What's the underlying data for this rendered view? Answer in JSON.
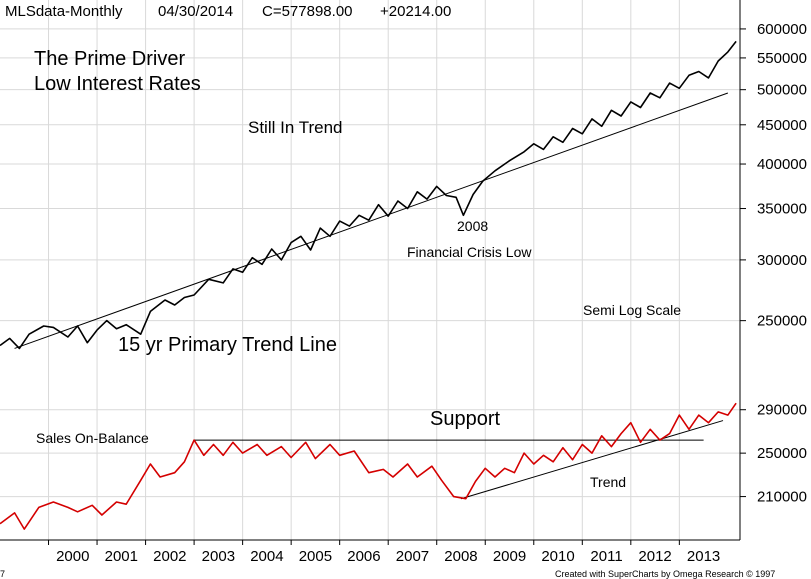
{
  "chart_data": {
    "type": "line",
    "header": {
      "symbol": "MLSdata-Monthly",
      "date": "04/30/2014",
      "close": "C=577898.00",
      "change": "+20214.00"
    },
    "annotations": {
      "title_line1": "The Prime Driver",
      "title_line2": "Low Interest Rates",
      "still_in_trend": "Still In Trend",
      "year_2008": "2008",
      "crisis_low": "Financial Crisis Low",
      "semi_log": "Semi Log Scale",
      "trend_line": "15 yr Primary Trend Line",
      "support": "Support",
      "sales_on_balance": "Sales On-Balance",
      "trend": "Trend"
    },
    "credit": "Created with SuperCharts by Omega Research © 1997",
    "corner_mark": "7",
    "grid": true,
    "upper_panel": {
      "scale": "semi-log",
      "ylim": [
        200000,
        620000
      ],
      "yticks": [
        {
          "value": 600000,
          "label": "600000"
        },
        {
          "value": 550000,
          "label": "550000"
        },
        {
          "value": 500000,
          "label": "500000"
        },
        {
          "value": 450000,
          "label": "450000"
        },
        {
          "value": 400000,
          "label": "400000"
        },
        {
          "value": 350000,
          "label": "350000"
        },
        {
          "value": 300000,
          "label": "300000"
        },
        {
          "value": 250000,
          "label": "250000"
        }
      ],
      "series": [
        {
          "values": [
            [
              1999.0,
              232000
            ],
            [
              1999.2,
              237000
            ],
            [
              1999.4,
              230000
            ],
            [
              1999.6,
              240000
            ],
            [
              1999.9,
              246000
            ],
            [
              2000.1,
              245000
            ],
            [
              2000.4,
              238000
            ],
            [
              2000.6,
              246000
            ],
            [
              2000.8,
              234000
            ],
            [
              2001.0,
              243000
            ],
            [
              2001.2,
              250000
            ],
            [
              2001.4,
              244000
            ],
            [
              2001.6,
              247000
            ],
            [
              2001.9,
              240000
            ],
            [
              2002.1,
              257000
            ],
            [
              2002.4,
              266000
            ],
            [
              2002.6,
              262000
            ],
            [
              2002.8,
              268000
            ],
            [
              2003.0,
              270000
            ],
            [
              2003.3,
              283000
            ],
            [
              2003.6,
              280000
            ],
            [
              2003.8,
              292000
            ],
            [
              2004.0,
              289000
            ],
            [
              2004.2,
              302000
            ],
            [
              2004.4,
              296000
            ],
            [
              2004.6,
              310000
            ],
            [
              2004.8,
              300000
            ],
            [
              2005.0,
              316000
            ],
            [
              2005.2,
              322000
            ],
            [
              2005.4,
              309000
            ],
            [
              2005.6,
              330000
            ],
            [
              2005.8,
              322000
            ],
            [
              2006.0,
              337000
            ],
            [
              2006.2,
              332000
            ],
            [
              2006.4,
              343000
            ],
            [
              2006.6,
              338000
            ],
            [
              2006.8,
              354000
            ],
            [
              2007.0,
              342000
            ],
            [
              2007.2,
              358000
            ],
            [
              2007.4,
              350000
            ],
            [
              2007.6,
              368000
            ],
            [
              2007.8,
              360000
            ],
            [
              2008.0,
              374000
            ],
            [
              2008.2,
              364000
            ],
            [
              2008.4,
              362000
            ],
            [
              2008.55,
              343000
            ],
            [
              2008.75,
              365000
            ],
            [
              2008.95,
              380000
            ],
            [
              2009.2,
              392000
            ],
            [
              2009.5,
              404000
            ],
            [
              2009.8,
              415000
            ],
            [
              2010.0,
              425000
            ],
            [
              2010.2,
              418000
            ],
            [
              2010.4,
              434000
            ],
            [
              2010.6,
              427000
            ],
            [
              2010.8,
              445000
            ],
            [
              2011.0,
              438000
            ],
            [
              2011.2,
              458000
            ],
            [
              2011.4,
              448000
            ],
            [
              2011.6,
              470000
            ],
            [
              2011.8,
              462000
            ],
            [
              2012.0,
              482000
            ],
            [
              2012.2,
              474000
            ],
            [
              2012.4,
              495000
            ],
            [
              2012.6,
              488000
            ],
            [
              2012.8,
              510000
            ],
            [
              2013.0,
              502000
            ],
            [
              2013.2,
              522000
            ],
            [
              2013.4,
              528000
            ],
            [
              2013.6,
              518000
            ],
            [
              2013.8,
              545000
            ],
            [
              2014.0,
              560000
            ],
            [
              2014.17,
              577898
            ]
          ]
        }
      ],
      "trendline": [
        [
          1999.3,
          230000
        ],
        [
          2014.0,
          495000
        ]
      ]
    },
    "lower_panel": {
      "ylim": [
        170000,
        310000
      ],
      "yticks": [
        {
          "value": 290000,
          "label": "290000"
        },
        {
          "value": 250000,
          "label": "250000"
        },
        {
          "value": 210000,
          "label": "210000"
        }
      ],
      "series": [
        {
          "values": [
            [
              1999.0,
              185000
            ],
            [
              1999.3,
              195000
            ],
            [
              1999.5,
              180000
            ],
            [
              1999.8,
              200000
            ],
            [
              2000.1,
              205000
            ],
            [
              2000.4,
              200000
            ],
            [
              2000.6,
              196000
            ],
            [
              2000.9,
              202000
            ],
            [
              2001.1,
              193000
            ],
            [
              2001.4,
              205000
            ],
            [
              2001.6,
              203000
            ],
            [
              2001.9,
              225000
            ],
            [
              2002.1,
              240000
            ],
            [
              2002.3,
              228000
            ],
            [
              2002.6,
              232000
            ],
            [
              2002.8,
              242000
            ],
            [
              2003.0,
              262000
            ],
            [
              2003.2,
              248000
            ],
            [
              2003.4,
              258000
            ],
            [
              2003.6,
              248000
            ],
            [
              2003.8,
              260000
            ],
            [
              2004.0,
              250000
            ],
            [
              2004.3,
              258000
            ],
            [
              2004.5,
              248000
            ],
            [
              2004.8,
              256000
            ],
            [
              2005.0,
              246000
            ],
            [
              2005.3,
              260000
            ],
            [
              2005.5,
              245000
            ],
            [
              2005.8,
              258000
            ],
            [
              2006.0,
              248000
            ],
            [
              2006.3,
              252000
            ],
            [
              2006.6,
              232000
            ],
            [
              2006.9,
              235000
            ],
            [
              2007.1,
              228000
            ],
            [
              2007.4,
              240000
            ],
            [
              2007.6,
              228000
            ],
            [
              2007.9,
              238000
            ],
            [
              2008.1,
              225000
            ],
            [
              2008.35,
              210000
            ],
            [
              2008.6,
              208000
            ],
            [
              2008.8,
              224000
            ],
            [
              2009.0,
              236000
            ],
            [
              2009.2,
              228000
            ],
            [
              2009.4,
              236000
            ],
            [
              2009.6,
              232000
            ],
            [
              2009.8,
              250000
            ],
            [
              2010.0,
              240000
            ],
            [
              2010.2,
              248000
            ],
            [
              2010.4,
              242000
            ],
            [
              2010.6,
              255000
            ],
            [
              2010.8,
              244000
            ],
            [
              2011.0,
              258000
            ],
            [
              2011.2,
              250000
            ],
            [
              2011.4,
              266000
            ],
            [
              2011.6,
              256000
            ],
            [
              2011.8,
              268000
            ],
            [
              2012.0,
              278000
            ],
            [
              2012.2,
              260000
            ],
            [
              2012.4,
              272000
            ],
            [
              2012.6,
              262000
            ],
            [
              2012.8,
              268000
            ],
            [
              2013.0,
              285000
            ],
            [
              2013.2,
              272000
            ],
            [
              2013.4,
              285000
            ],
            [
              2013.6,
              278000
            ],
            [
              2013.8,
              288000
            ],
            [
              2014.0,
              285000
            ],
            [
              2014.17,
              296000
            ]
          ]
        }
      ],
      "support_line": [
        [
          2003.0,
          262000
        ],
        [
          2013.5,
          262000
        ]
      ],
      "trendline": [
        [
          2008.5,
          208000
        ],
        [
          2013.9,
          280000
        ]
      ]
    },
    "xaxis": {
      "range": [
        1999.0,
        2014.25
      ],
      "ticks": [
        {
          "value": 2000,
          "label": "2000"
        },
        {
          "value": 2001,
          "label": "2001"
        },
        {
          "value": 2002,
          "label": "2002"
        },
        {
          "value": 2003,
          "label": "2003"
        },
        {
          "value": 2004,
          "label": "2004"
        },
        {
          "value": 2005,
          "label": "2005"
        },
        {
          "value": 2006,
          "label": "2006"
        },
        {
          "value": 2007,
          "label": "2007"
        },
        {
          "value": 2008,
          "label": "2008"
        },
        {
          "value": 2009,
          "label": "2009"
        },
        {
          "value": 2010,
          "label": "2010"
        },
        {
          "value": 2011,
          "label": "2011"
        },
        {
          "value": 2012,
          "label": "2012"
        },
        {
          "value": 2013,
          "label": "2013"
        }
      ]
    },
    "colors": {
      "upper_line": "#000000",
      "lower_line": "#d40000",
      "trend_lines": "#000000"
    }
  }
}
